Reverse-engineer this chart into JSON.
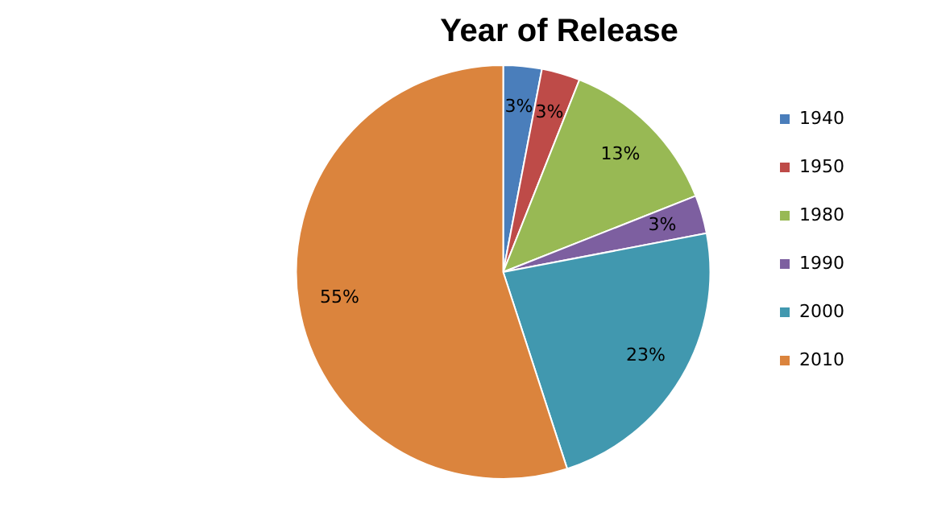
{
  "chart_data": {
    "type": "pie",
    "title": "Year of Release",
    "categories": [
      "1940",
      "1950",
      "1980",
      "1990",
      "2000",
      "2010"
    ],
    "values": [
      3,
      3,
      13,
      3,
      23,
      55
    ],
    "value_labels": [
      "3%",
      "3%",
      "13%",
      "3%",
      "23%",
      "55%"
    ],
    "colors": [
      "#4a7ebb",
      "#be4b48",
      "#98b954",
      "#7d5fa0",
      "#4198af",
      "#db843d"
    ],
    "legend": "right"
  }
}
